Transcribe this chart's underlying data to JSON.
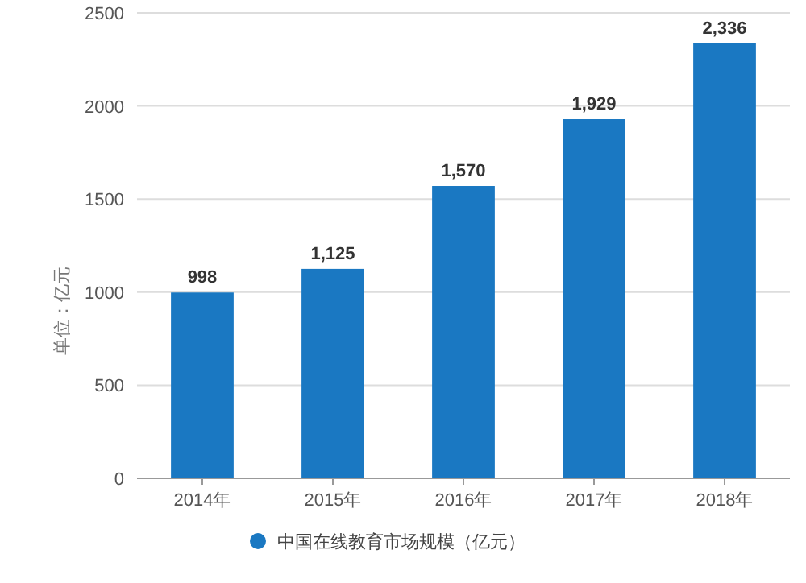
{
  "chart_data": {
    "type": "bar",
    "ylabel": "单位：亿元",
    "categories": [
      "2014年",
      "2015年",
      "2016年",
      "2017年",
      "2018年"
    ],
    "series": [
      {
        "name": "中国在线教育市场规模（亿元）",
        "color": "#1a78c2",
        "values": [
          998,
          1125,
          1570,
          1929,
          2336
        ],
        "value_labels": [
          "998",
          "1,125",
          "1,570",
          "1,929",
          "2,336"
        ]
      }
    ],
    "ylim": [
      0,
      2500
    ],
    "yticks": [
      0,
      500,
      1000,
      1500,
      2000,
      2500
    ],
    "grid": "y",
    "legend": "bottom"
  }
}
